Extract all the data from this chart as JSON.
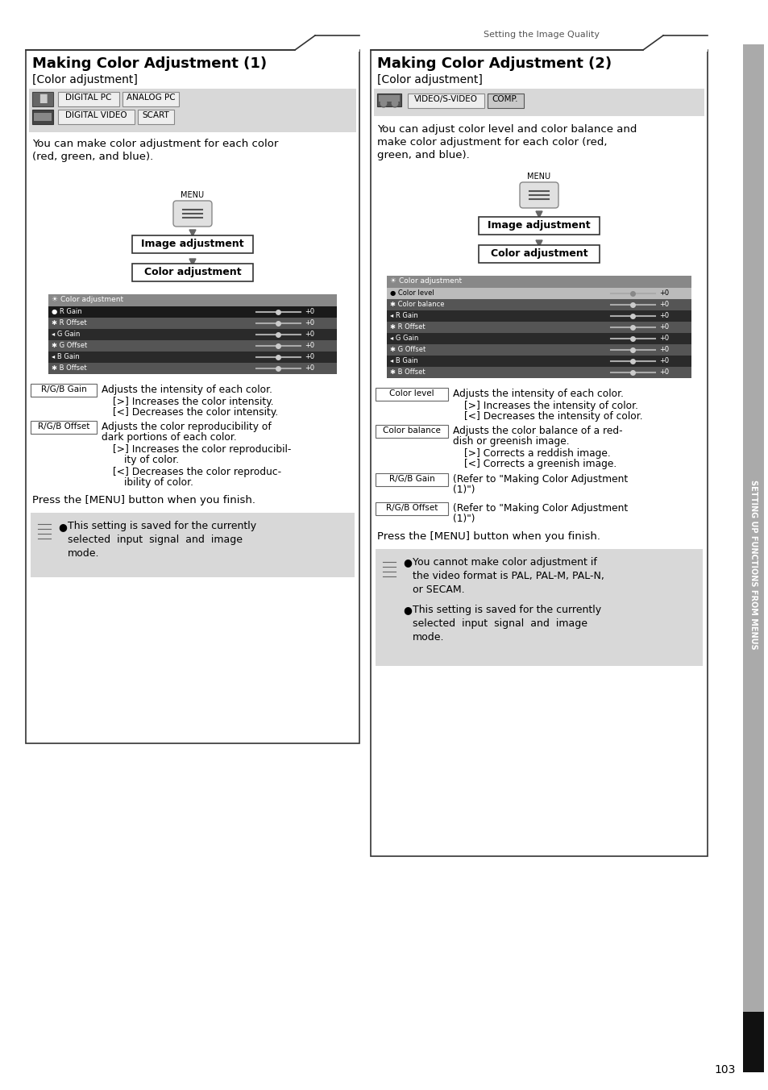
{
  "page_bg": "#ffffff",
  "header_text": "Setting the Image Quality",
  "page_number": "103",
  "sidebar_text": "SETTING UP FUNCTIONS FROM MENUS",
  "left_panel": {
    "title": "Making Color Adjustment (1)",
    "subtitle": "[Color adjustment]",
    "input_row1": [
      "DIGITAL PC",
      "ANALOG PC"
    ],
    "input_row2": [
      "DIGITAL VIDEO",
      "SCART"
    ],
    "description": "You can make color adjustment for each color\n(red, green, and blue).",
    "screen_rows": [
      "R Gain",
      "R Offset",
      "G Gain",
      "G Offset",
      "B Gain",
      "B Offset"
    ],
    "press_text": "Press the [MENU] button when you finish.",
    "note": "This setting is saved for the currently\nselected  input  signal  and  image\nmode."
  },
  "right_panel": {
    "title": "Making Color Adjustment (2)",
    "subtitle": "[Color adjustment]",
    "input_row1": [
      "VIDEO/S-VIDEO",
      "COMP."
    ],
    "description": "You can adjust color level and color balance and\nmake color adjustment for each color (red,\ngreen, and blue).",
    "screen_rows": [
      "Color level",
      "Color balance",
      "R Gain",
      "R Offset",
      "G Gain",
      "G Offset",
      "B Gain",
      "B Offset"
    ],
    "press_text": "Press the [MENU] button when you finish.",
    "notes": [
      "You cannot make color adjustment if\nthe video format is PAL, PAL-M, PAL-N,\nor SECAM.",
      "This setting is saved for the currently\nselected  input  signal  and  image\nmode."
    ]
  }
}
